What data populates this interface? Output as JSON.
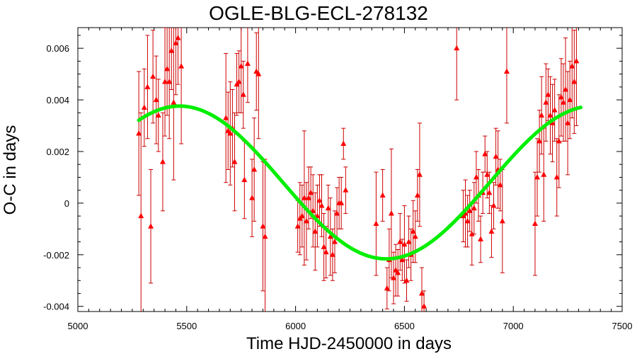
{
  "chart_data": {
    "type": "scatter",
    "title": "OGLE-BLG-ECL-278132",
    "xlabel": "Time HJD-2450000 in days",
    "ylabel": "O-C in days",
    "xlim": [
      5000,
      7500
    ],
    "ylim": [
      -0.0042,
      0.0068
    ],
    "x_ticks": [
      5000,
      5500,
      6000,
      6500,
      7000,
      7500
    ],
    "x_tick_labels": [
      "5000",
      "5500",
      "6000",
      "6500",
      "7000",
      "7500"
    ],
    "y_ticks": [
      -0.004,
      -0.002,
      0,
      0.002,
      0.004,
      0.006
    ],
    "y_tick_labels": [
      "-0.004",
      "-0.002",
      "0",
      "0.002",
      "0.004",
      "0.006"
    ],
    "grid": false,
    "colors": {
      "points": "#ff0000",
      "error_bars": "#cc0000",
      "fit": "#00ee00",
      "axes": "#000000"
    },
    "series": [
      {
        "type": "scatter-errorbar",
        "points": [
          {
            "x": 5280,
            "y": 0.0027,
            "err": 0.0024
          },
          {
            "x": 5290,
            "y": -0.0005,
            "err": 0.004
          },
          {
            "x": 5305,
            "y": 0.0037,
            "err": 0.0015
          },
          {
            "x": 5320,
            "y": 0.0045,
            "err": 0.002
          },
          {
            "x": 5335,
            "y": -0.0009,
            "err": 0.0022
          },
          {
            "x": 5345,
            "y": 0.0049,
            "err": 0.0018
          },
          {
            "x": 5360,
            "y": 0.004,
            "err": 0.0017
          },
          {
            "x": 5370,
            "y": 0.0034,
            "err": 0.0014
          },
          {
            "x": 5390,
            "y": 0.0016,
            "err": 0.0019
          },
          {
            "x": 5400,
            "y": 0.0047,
            "err": 0.0021
          },
          {
            "x": 5410,
            "y": 0.0052,
            "err": 0.0018
          },
          {
            "x": 5420,
            "y": 0.0047,
            "err": 0.0022
          },
          {
            "x": 5430,
            "y": 0.0059,
            "err": 0.0015
          },
          {
            "x": 5440,
            "y": 0.0039,
            "err": 0.003
          },
          {
            "x": 5450,
            "y": 0.0062,
            "err": 0.002
          },
          {
            "x": 5460,
            "y": 0.0064,
            "err": 0.0018
          },
          {
            "x": 5475,
            "y": 0.0053,
            "err": 0.003
          },
          {
            "x": 5680,
            "y": 0.0033,
            "err": 0.0025
          },
          {
            "x": 5690,
            "y": 0.0028,
            "err": 0.0015
          },
          {
            "x": 5700,
            "y": 0.0027,
            "err": 0.002
          },
          {
            "x": 5710,
            "y": 0.0029,
            "err": 0.0015
          },
          {
            "x": 5720,
            "y": 0.0016,
            "err": 0.0019
          },
          {
            "x": 5730,
            "y": 0.0046,
            "err": 0.0012
          },
          {
            "x": 5740,
            "y": 0.0047,
            "err": 0.0012
          },
          {
            "x": 5750,
            "y": 0.0053,
            "err": 0.0018
          },
          {
            "x": 5760,
            "y": 0.0042,
            "err": 0.0013
          },
          {
            "x": 5765,
            "y": 0.0009,
            "err": 0.0015
          },
          {
            "x": 5780,
            "y": 0.0054,
            "err": 0.0015
          },
          {
            "x": 5800,
            "y": 0.0002,
            "err": 0.0015
          },
          {
            "x": 5810,
            "y": 0.0013,
            "err": 0.002
          },
          {
            "x": 5820,
            "y": 0.0051,
            "err": 0.0015
          },
          {
            "x": 5830,
            "y": 0.005,
            "err": 0.0025
          },
          {
            "x": 5850,
            "y": -0.0009,
            "err": 0.0025
          },
          {
            "x": 5860,
            "y": -0.0013,
            "err": 0.003
          },
          {
            "x": 6010,
            "y": -0.0009,
            "err": 0.001
          },
          {
            "x": 6020,
            "y": -0.0006,
            "err": 0.0014
          },
          {
            "x": 6030,
            "y": -0.0005,
            "err": 0.0012
          },
          {
            "x": 6040,
            "y": 0.0002,
            "err": 0.0026
          },
          {
            "x": 6050,
            "y": -0.0007,
            "err": 0.0015
          },
          {
            "x": 6060,
            "y": 0.0002,
            "err": 0.0012
          },
          {
            "x": 6070,
            "y": 0.0004,
            "err": 0.001
          },
          {
            "x": 6080,
            "y": -0.0003,
            "err": 0.0014
          },
          {
            "x": 6090,
            "y": -0.0011,
            "err": 0.0015
          },
          {
            "x": 6100,
            "y": -0.0005,
            "err": 0.0012
          },
          {
            "x": 6110,
            "y": 0.0001,
            "err": 0.001
          },
          {
            "x": 6120,
            "y": -0.0001,
            "err": 0.0012
          },
          {
            "x": 6130,
            "y": -0.0017,
            "err": 0.0013
          },
          {
            "x": 6140,
            "y": -0.0019,
            "err": 0.001
          },
          {
            "x": 6150,
            "y": -0.0002,
            "err": 0.0009
          },
          {
            "x": 6160,
            "y": -0.0013,
            "err": 0.0015
          },
          {
            "x": 6170,
            "y": -0.002,
            "err": 0.001
          },
          {
            "x": 6180,
            "y": -0.0015,
            "err": 0.0012
          },
          {
            "x": 6190,
            "y": -0.0004,
            "err": 0.001
          },
          {
            "x": 6200,
            "y": 0.0,
            "err": 0.001
          },
          {
            "x": 6210,
            "y": 0.0,
            "err": 0.001
          },
          {
            "x": 6220,
            "y": 0.0023,
            "err": 0.0006
          },
          {
            "x": 6230,
            "y": 0.0005,
            "err": 0.0009
          },
          {
            "x": 6370,
            "y": -0.0008,
            "err": 0.002
          },
          {
            "x": 6400,
            "y": 0.0003,
            "err": 0.001
          },
          {
            "x": 6420,
            "y": -0.0033,
            "err": 0.0008
          },
          {
            "x": 6430,
            "y": -0.0022,
            "err": 0.0012
          },
          {
            "x": 6440,
            "y": -0.0004,
            "err": 0.0025
          },
          {
            "x": 6450,
            "y": -0.0029,
            "err": 0.001
          },
          {
            "x": 6460,
            "y": -0.0026,
            "err": 0.001
          },
          {
            "x": 6470,
            "y": -0.0027,
            "err": 0.0009
          },
          {
            "x": 6480,
            "y": -0.0015,
            "err": 0.0011
          },
          {
            "x": 6490,
            "y": -0.0022,
            "err": 0.0008
          },
          {
            "x": 6500,
            "y": -0.0016,
            "err": 0.0015
          },
          {
            "x": 6510,
            "y": -0.003,
            "err": 0.0008
          },
          {
            "x": 6520,
            "y": -0.0015,
            "err": 0.001
          },
          {
            "x": 6530,
            "y": -0.002,
            "err": 0.001
          },
          {
            "x": 6540,
            "y": -0.0011,
            "err": 0.0012
          },
          {
            "x": 6550,
            "y": -0.0013,
            "err": 0.001
          },
          {
            "x": 6560,
            "y": 0.0003,
            "err": 0.001
          },
          {
            "x": 6570,
            "y": 0.0011,
            "err": 0.002
          },
          {
            "x": 6580,
            "y": -0.0035,
            "err": 0.001
          },
          {
            "x": 6590,
            "y": -0.004,
            "err": 0.0006
          },
          {
            "x": 6740,
            "y": 0.006,
            "err": 0.002
          },
          {
            "x": 6770,
            "y": -0.0005,
            "err": 0.001
          },
          {
            "x": 6780,
            "y": -0.0004,
            "err": 0.0013
          },
          {
            "x": 6790,
            "y": -0.0007,
            "err": 0.001
          },
          {
            "x": 6800,
            "y": -0.0003,
            "err": 0.0008
          },
          {
            "x": 6810,
            "y": -0.0012,
            "err": 0.0012
          },
          {
            "x": 6820,
            "y": -0.0002,
            "err": 0.001
          },
          {
            "x": 6830,
            "y": 0.001,
            "err": 0.001
          },
          {
            "x": 6840,
            "y": 0.0003,
            "err": 0.001
          },
          {
            "x": 6850,
            "y": -0.0014,
            "err": 0.0009
          },
          {
            "x": 6860,
            "y": 0.0004,
            "err": 0.0008
          },
          {
            "x": 6870,
            "y": 0.0019,
            "err": 0.0007
          },
          {
            "x": 6880,
            "y": 0.0011,
            "err": 0.0009
          },
          {
            "x": 6890,
            "y": 0.0004,
            "err": 0.0008
          },
          {
            "x": 6900,
            "y": -0.0011,
            "err": 0.001
          },
          {
            "x": 6910,
            "y": -0.0001,
            "err": 0.0009
          },
          {
            "x": 6920,
            "y": 0.0018,
            "err": 0.0011
          },
          {
            "x": 6930,
            "y": 0.0013,
            "err": 0.0015
          },
          {
            "x": 6940,
            "y": 0.0007,
            "err": 0.001
          },
          {
            "x": 6950,
            "y": -0.0007,
            "err": 0.002
          },
          {
            "x": 6970,
            "y": 0.0051,
            "err": 0.002
          },
          {
            "x": 7100,
            "y": -0.0008,
            "err": 0.002
          },
          {
            "x": 7110,
            "y": 0.001,
            "err": 0.0015
          },
          {
            "x": 7120,
            "y": 0.0024,
            "err": 0.0012
          },
          {
            "x": 7130,
            "y": 0.0034,
            "err": 0.0015
          },
          {
            "x": 7140,
            "y": 0.0011,
            "err": 0.0018
          },
          {
            "x": 7150,
            "y": 0.0039,
            "err": 0.0015
          },
          {
            "x": 7160,
            "y": 0.0042,
            "err": 0.001
          },
          {
            "x": 7170,
            "y": 0.0034,
            "err": 0.0015
          },
          {
            "x": 7180,
            "y": 0.0031,
            "err": 0.0015
          },
          {
            "x": 7190,
            "y": 0.0036,
            "err": 0.0012
          },
          {
            "x": 7200,
            "y": 0.001,
            "err": 0.0015
          },
          {
            "x": 7210,
            "y": 0.0024,
            "err": 0.0018
          },
          {
            "x": 7220,
            "y": 0.0041,
            "err": 0.0015
          },
          {
            "x": 7230,
            "y": 0.0039,
            "err": 0.0015
          },
          {
            "x": 7240,
            "y": 0.0044,
            "err": 0.002
          },
          {
            "x": 7250,
            "y": 0.0031,
            "err": 0.002
          },
          {
            "x": 7260,
            "y": 0.004,
            "err": 0.0015
          },
          {
            "x": 7270,
            "y": 0.0053,
            "err": 0.002
          },
          {
            "x": 7280,
            "y": 0.0047,
            "err": 0.002
          },
          {
            "x": 7290,
            "y": 0.0055,
            "err": 0.0025
          }
        ]
      },
      {
        "type": "fit-curve",
        "x_range": [
          5280,
          7310
        ],
        "offset": 0.0008,
        "amplitude": 0.00296,
        "period": 1900,
        "phase_zero_x": 5467
      }
    ]
  }
}
